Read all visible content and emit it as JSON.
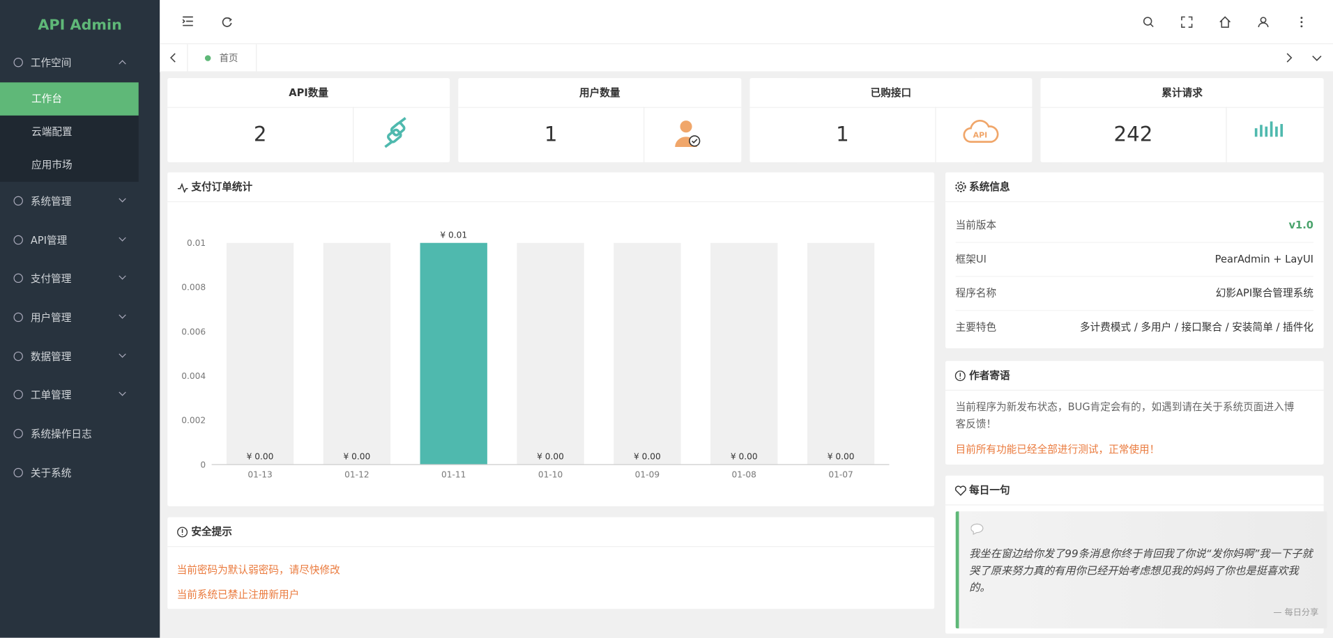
{
  "sidebar": {
    "logo": "API Admin",
    "menu": [
      {
        "label": "工作空间",
        "children": [
          "工作台",
          "云端配置",
          "应用市场"
        ]
      },
      {
        "label": "系统管理"
      },
      {
        "label": "API管理"
      },
      {
        "label": "支付管理"
      },
      {
        "label": "用户管理"
      },
      {
        "label": "数据管理"
      },
      {
        "label": "工单管理"
      },
      {
        "label": "系统操作日志"
      },
      {
        "label": "关于系统"
      }
    ]
  },
  "tabs": {
    "home": "首页"
  },
  "stats": [
    {
      "title": "API数量",
      "value": 2
    },
    {
      "title": "用户数量",
      "value": 1
    },
    {
      "title": "已购接口",
      "value": 1
    },
    {
      "title": "累计请求",
      "value": 242
    }
  ],
  "order_chart": {
    "type": "bar",
    "title": "支付订单统计",
    "categories": [
      "01-13",
      "01-12",
      "01-11",
      "01-10",
      "01-09",
      "01-08",
      "01-07"
    ],
    "values": [
      0,
      0,
      0.01,
      0,
      0,
      0,
      0
    ],
    "value_labels": [
      "¥ 0.00",
      "¥ 0.00",
      "¥ 0.01",
      "¥ 0.00",
      "¥ 0.00",
      "¥ 0.00",
      "¥ 0.00"
    ],
    "color": "#4fb9ae",
    "ylim": [
      0,
      0.01
    ],
    "yticks": [
      0,
      0.002,
      0.004,
      0.006,
      0.008,
      0.01
    ]
  },
  "security": {
    "title": "安全提示",
    "items": [
      "当前密码为默认弱密码，请尽快修改",
      "当前系统已禁止注册新用户"
    ]
  },
  "system_info": {
    "title": "系统信息",
    "rows": [
      [
        "当前版本",
        "v1.0"
      ],
      [
        "框架UI",
        "PearAdmin + LayUI"
      ],
      [
        "程序名称",
        "幻影API聚合管理系统"
      ],
      [
        "主要特色",
        "多计费模式 / 多用户 / 接口聚合 / 安装简单 / 插件化"
      ]
    ]
  },
  "author": {
    "title": "作者寄语",
    "text": "当前程序为新发布状态，BUG肯定会有的，如遇到请在关于系统页面进入博客反馈！",
    "notice": "目前所有功能已经全部进行测试，正常使用！"
  },
  "daily": {
    "title": "每日一句",
    "quote": "我坐在窗边给你发了99条消息你终于肯回我了你说“发你妈啊”我一下子就哭了原来努力真的有用你已经开始考虑想见我的妈妈了你也是挺喜欢我的。",
    "source": "— 每日分享"
  }
}
